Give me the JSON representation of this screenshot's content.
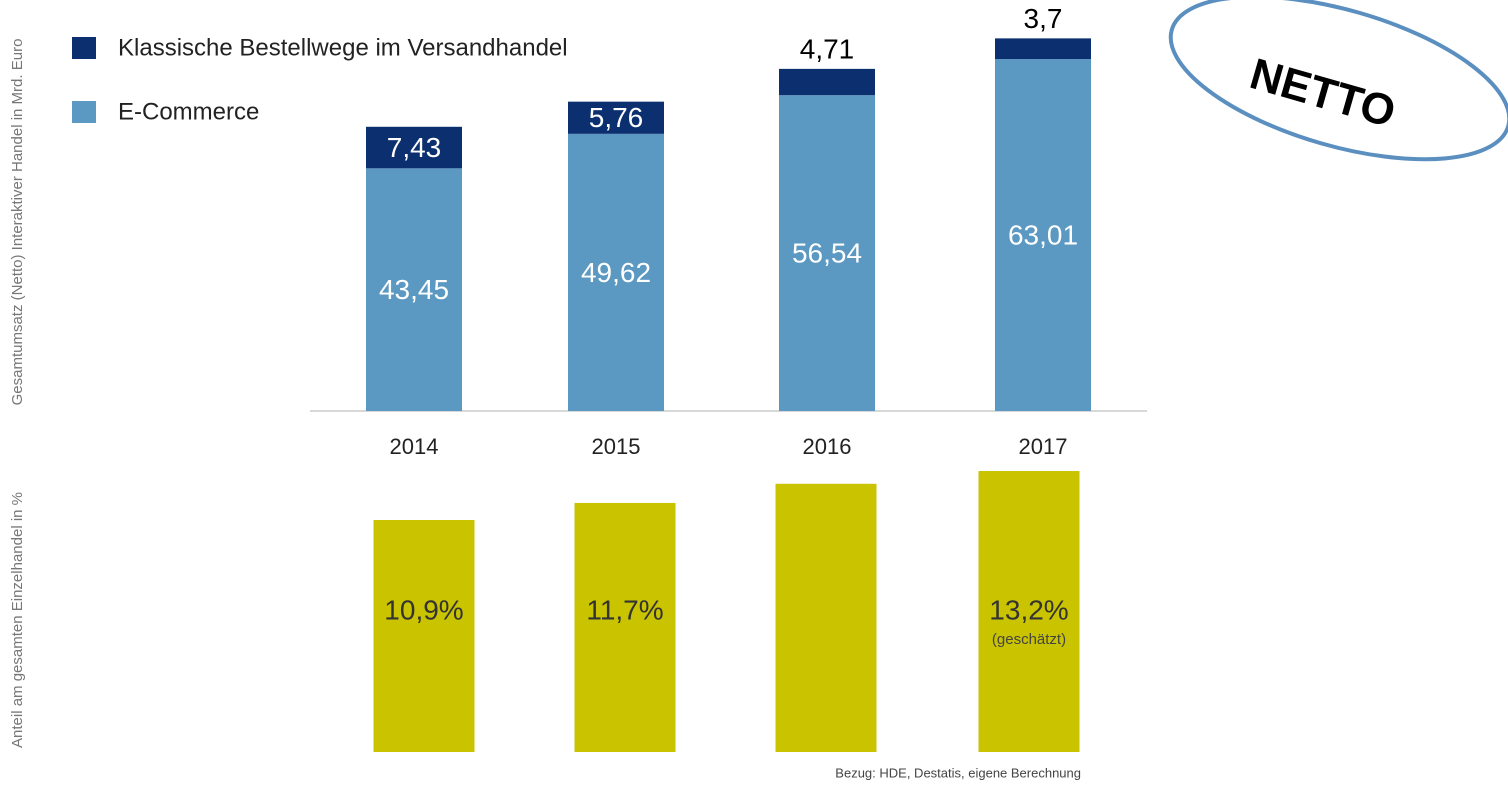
{
  "chart_data": [
    {
      "type": "stacked_bar",
      "y_label": "Gesamtumsatz (Netto) Interaktiver Handel in Mrd. Euro",
      "categories": [
        "2014",
        "2015",
        "2016",
        "2017"
      ],
      "series": [
        {
          "name": "E-Commerce",
          "color": "#5b98c2",
          "values": [
            43.45,
            49.62,
            56.54,
            63.01
          ],
          "value_labels": [
            "43,45",
            "49,62",
            "56,54",
            "63,01"
          ]
        },
        {
          "name": "Klassische Bestellwege im Versandhandel",
          "color": "#0b2f6f",
          "values": [
            7.43,
            5.76,
            4.71,
            3.7
          ],
          "value_labels": [
            "7,43",
            "5,76",
            "4,71",
            "3,7"
          ]
        }
      ],
      "ylim": [
        0,
        70
      ],
      "legend": "top-left",
      "annotation": "NETTO"
    },
    {
      "type": "bar",
      "y_label": "Anteil am gesamten Einzelhandel in %",
      "values": [
        10.9,
        11.7,
        12.6,
        13.2
      ],
      "value_labels": [
        "10,9%",
        "11,7%",
        null,
        "13,2%"
      ],
      "color": "#c9c300",
      "ylim": [
        0,
        14
      ],
      "annotation": "(geschätzt)",
      "source": "Bezug: HDE, Destatis, eigene Berechnung"
    }
  ]
}
